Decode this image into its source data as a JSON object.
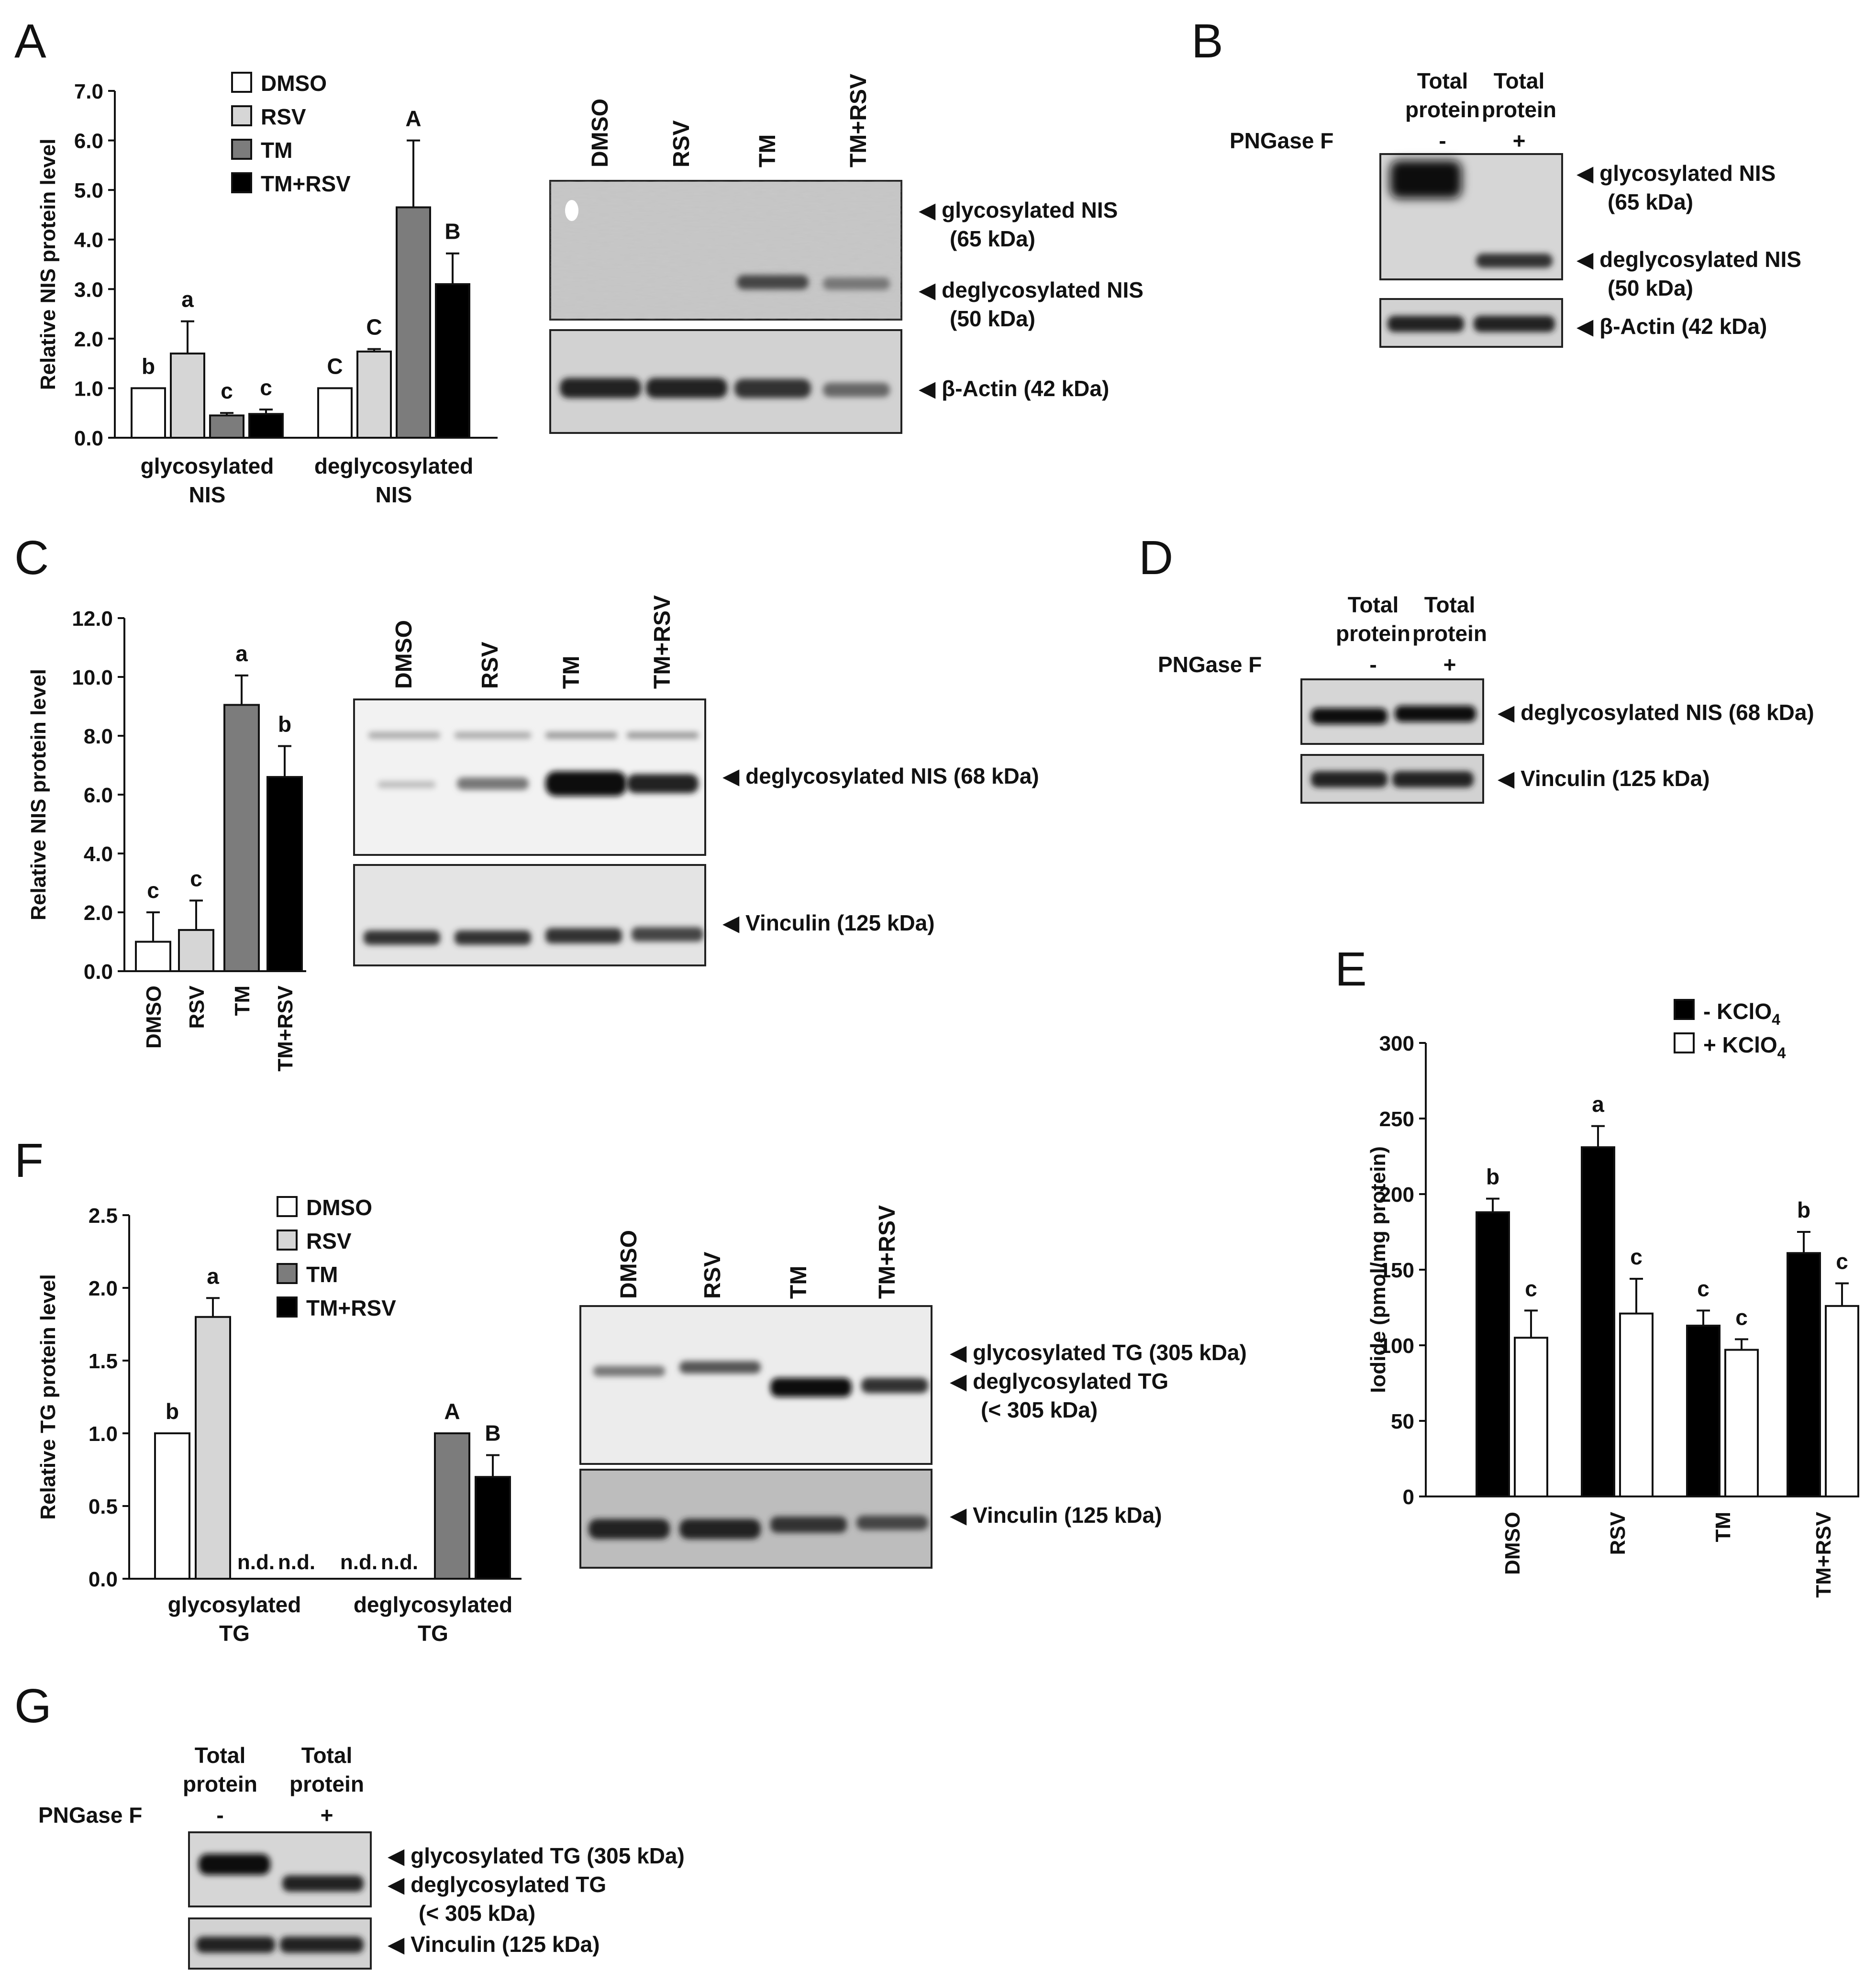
{
  "panel_labels": {
    "A": "A",
    "B": "B",
    "C": "C",
    "D": "D",
    "E": "E",
    "F": "F",
    "G": "G"
  },
  "colors": {
    "dmso": "#ffffff",
    "rsv": "#d6d6d6",
    "tm": "#7c7c7c",
    "tmrsv": "#000000",
    "minus_kclo4": "#000000",
    "plus_kclo4": "#ffffff"
  },
  "chart_data": [
    {
      "panel": "A",
      "type": "bar",
      "ylabel": "Relative NIS protein level",
      "ylim": [
        0,
        7
      ],
      "yticks": [
        "0.0",
        "1.0",
        "2.0",
        "3.0",
        "4.0",
        "5.0",
        "6.0",
        "7.0"
      ],
      "groups": [
        "glycosylated\nNIS",
        "deglycosylated\nNIS"
      ],
      "group_lines": [
        [
          "glycosylated",
          "NIS"
        ],
        [
          "deglycosylated",
          "NIS"
        ]
      ],
      "series": [
        {
          "name": "DMSO",
          "values": [
            1.0,
            1.0
          ],
          "errors": [
            0,
            0
          ],
          "letters": [
            "b",
            "C"
          ]
        },
        {
          "name": "RSV",
          "values": [
            1.7,
            1.74
          ],
          "errors": [
            0.65,
            0.05
          ],
          "letters": [
            "a",
            "C"
          ]
        },
        {
          "name": "TM",
          "values": [
            0.45,
            4.65
          ],
          "errors": [
            0.05,
            1.35
          ],
          "letters": [
            "c",
            "A"
          ]
        },
        {
          "name": "TM+RSV",
          "values": [
            0.48,
            3.1
          ],
          "errors": [
            0.09,
            0.62
          ],
          "letters": [
            "c",
            "B"
          ]
        }
      ]
    },
    {
      "panel": "C",
      "type": "bar",
      "ylabel": "Relative NIS protein level",
      "ylim": [
        0,
        12
      ],
      "yticks": [
        "0.0",
        "2.0",
        "4.0",
        "6.0",
        "8.0",
        "10.0",
        "12.0"
      ],
      "categories": [
        "DMSO",
        "RSV",
        "TM",
        "TM+RSV"
      ],
      "values": [
        1.0,
        1.4,
        9.05,
        6.6
      ],
      "errors": [
        1.0,
        1.0,
        1.0,
        1.05
      ],
      "letters": [
        "c",
        "c",
        "a",
        "b"
      ]
    },
    {
      "panel": "E",
      "type": "bar",
      "ylabel": "Iodide (pmol/mg protein)",
      "ylim": [
        0,
        300
      ],
      "yticks": [
        "0",
        "50",
        "100",
        "150",
        "200",
        "250",
        "300"
      ],
      "categories": [
        "DMSO",
        "RSV",
        "TM",
        "TM+RSV"
      ],
      "series": [
        {
          "name": "- KClO4",
          "legend_main": "- KClO",
          "legend_sub": "4",
          "values": [
            188,
            231,
            113,
            161
          ],
          "errors": [
            9,
            14,
            10,
            14
          ],
          "letters": [
            "b",
            "a",
            "c",
            "b"
          ]
        },
        {
          "name": "+ KClO4",
          "legend_main": "+ KClO",
          "legend_sub": "4",
          "values": [
            105,
            121,
            97,
            126
          ],
          "errors": [
            18,
            23,
            7,
            15
          ],
          "letters": [
            "c",
            "c",
            "c",
            "c"
          ]
        }
      ]
    },
    {
      "panel": "F",
      "type": "bar",
      "ylabel": "Relative TG protein level",
      "ylim": [
        0,
        2.5
      ],
      "yticks": [
        "0.0",
        "0.5",
        "1.0",
        "1.5",
        "2.0",
        "2.5"
      ],
      "groups": [
        "glycosylated\nTG",
        "deglycosylated\nTG"
      ],
      "group_lines": [
        [
          "glycosylated",
          "TG"
        ],
        [
          "deglycosylated",
          "TG"
        ]
      ],
      "series": [
        {
          "name": "DMSO",
          "values": [
            1.0,
            null
          ],
          "errors": [
            0,
            0
          ],
          "letters": [
            "b",
            "n.d."
          ]
        },
        {
          "name": "RSV",
          "values": [
            1.8,
            null
          ],
          "errors": [
            0.13,
            0
          ],
          "letters": [
            "a",
            "n.d."
          ]
        },
        {
          "name": "TM",
          "values": [
            null,
            1.0
          ],
          "errors": [
            0,
            0
          ],
          "letters": [
            "n.d.",
            "A"
          ]
        },
        {
          "name": "TM+RSV",
          "values": [
            null,
            0.7
          ],
          "errors": [
            0,
            0.15
          ],
          "letters": [
            "n.d.",
            "B"
          ]
        }
      ]
    }
  ],
  "blots": {
    "lanes4": [
      "DMSO",
      "RSV",
      "TM",
      "TM+RSV"
    ],
    "A": {
      "band1": "◀ glycosylated  NIS",
      "band1b": "(65 kDa)",
      "band2": "◀ deglycosylated  NIS",
      "band2b": "(50 kDa)",
      "loading": "◀ β-Actin (42 kDa)"
    },
    "B": {
      "lane1a": "Total",
      "lane1b": "protein",
      "lane2a": "Total",
      "lane2b": "protein",
      "pngase": "PNGase F",
      "minus": "-",
      "plus": "+",
      "band1": "◀ glycosylated  NIS",
      "band1b": "(65 kDa)",
      "band2": "◀ deglycosylated  NIS",
      "band2b": "(50 kDa)",
      "loading": "◀ β-Actin (42 kDa)"
    },
    "C": {
      "band1": "◀ deglycosylated  NIS (68 kDa)",
      "loading": "◀ Vinculin  (125 kDa)"
    },
    "D": {
      "lane1a": "Total",
      "lane1b": "protein",
      "lane2a": "Total",
      "lane2b": "protein",
      "pngase": "PNGase F",
      "minus": "-",
      "plus": "+",
      "band1": "◀ deglycosylated  NIS (68 kDa)",
      "loading": "◀ Vinculin  (125 kDa)"
    },
    "F": {
      "band1": "◀ glycosylated  TG (305 kDa)",
      "band2": "◀ deglycosylated  TG",
      "band2b": "(< 305 kDa)",
      "loading": "◀ Vinculin  (125 kDa)"
    },
    "G": {
      "lane1a": "Total",
      "lane1b": "protein",
      "lane2a": "Total",
      "lane2b": "protein",
      "pngase": "PNGase F",
      "minus": "-",
      "plus": "+",
      "band1": "◀ glycosylated  TG (305 kDa)",
      "band2": "◀ deglycosylated  TG",
      "band2b": "(< 305 kDa)",
      "loading": "◀ Vinculin  (125 kDa)"
    }
  }
}
